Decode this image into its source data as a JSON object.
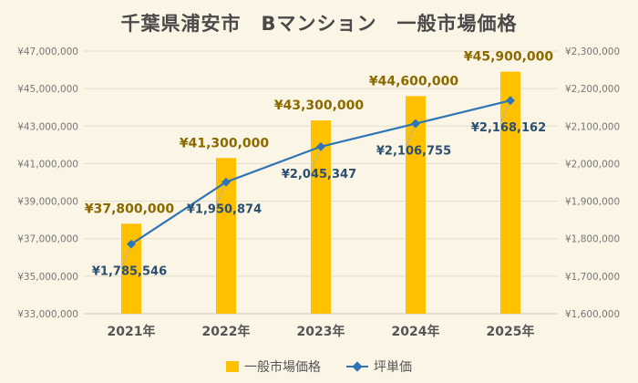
{
  "chart_data": {
    "type": "bar",
    "title": "千葉県浦安市　Bマンション　一般市場価格",
    "categories": [
      "2021年",
      "2022年",
      "2023年",
      "2024年",
      "2025年"
    ],
    "series": [
      {
        "name": "一般市場価格",
        "type": "bar",
        "axis": "left",
        "color": "#ffc000",
        "values": [
          37800000,
          41300000,
          43300000,
          44600000,
          45900000
        ],
        "labels": [
          "¥37,800,000",
          "¥41,300,000",
          "¥43,300,000",
          "¥44,600,000",
          "¥45,900,000"
        ]
      },
      {
        "name": "坪単価",
        "type": "line",
        "axis": "right",
        "color": "#2e75b6",
        "values": [
          1785546,
          1950874,
          2045347,
          2106755,
          2168162
        ],
        "labels": [
          "¥1,785,546",
          "¥1,950,874",
          "¥2,045,347",
          "¥2,106,755",
          "¥2,168,162"
        ]
      }
    ],
    "y_left": {
      "range": [
        33000000,
        47000000
      ],
      "ticks": [
        "¥33,000,000",
        "¥35,000,000",
        "¥37,000,000",
        "¥39,000,000",
        "¥41,000,000",
        "¥43,000,000",
        "¥45,000,000",
        "¥47,000,000"
      ]
    },
    "y_right": {
      "range": [
        1600000,
        2300000
      ],
      "ticks": [
        "¥1,600,000",
        "¥1,700,000",
        "¥1,800,000",
        "¥1,900,000",
        "¥2,000,000",
        "¥2,100,000",
        "¥2,200,000",
        "¥2,300,000"
      ]
    },
    "grid": true,
    "legend": "bottom"
  },
  "legend": {
    "bar": "一般市場価格",
    "line": "坪単価"
  }
}
